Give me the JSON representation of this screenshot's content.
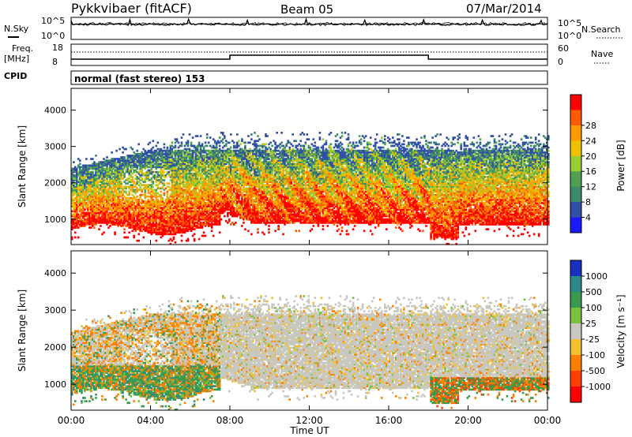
{
  "header": {
    "title": "Pykkvibaer (fitACF)",
    "beam": "Beam 05",
    "date": "07/Mar/2014"
  },
  "panels": {
    "nsky_label": "N.Sky",
    "nsky_ticks": [
      "10^5",
      "10^0"
    ],
    "nsearch_label": "N.Search",
    "nsearch_ticks": [
      "10^5",
      "10^0"
    ],
    "freq_label": "Freq.",
    "freq_unit": "[MHz]",
    "freq_ticks": [
      "18",
      "8"
    ],
    "nave_label": "Nave",
    "nave_ticks": [
      "60",
      "0"
    ],
    "cpid_label": "CPID",
    "cpid_text": "normal (fast stereo) 153"
  },
  "chart_data": [
    {
      "type": "heatmap",
      "name": "power",
      "ylabel": "Slant Range [km]",
      "yticks": [
        "1000",
        "2000",
        "3000",
        "4000"
      ],
      "ylim": [
        300,
        4600
      ],
      "xlim": [
        0,
        24
      ],
      "colorbar_label": "Power [dB]",
      "colorbar_ticks": [
        "4",
        "8",
        "12",
        "16",
        "20",
        "24",
        "28"
      ],
      "colors": [
        "#1a1aff",
        "#3050a8",
        "#3c8a6a",
        "#4fa050",
        "#9acd32",
        "#f0c000",
        "#ff9a00",
        "#ff5a00",
        "#ff0000"
      ]
    },
    {
      "type": "heatmap",
      "name": "velocity",
      "ylabel": "Slant Range [km]",
      "yticks": [
        "1000",
        "2000",
        "3000",
        "4000"
      ],
      "ylim": [
        300,
        4600
      ],
      "xlim": [
        0,
        24
      ],
      "colorbar_label": "Velocity [m s⁻¹]",
      "colorbar_ticks": [
        "1000",
        "500",
        "100",
        "25",
        "-25",
        "-100",
        "-500",
        "-1000"
      ],
      "colors": [
        "#1a30c0",
        "#2a8a8a",
        "#3a9a50",
        "#7cc040",
        "#c8c8c0",
        "#f0c030",
        "#ff8000",
        "#ff4000",
        "#ff0000"
      ]
    }
  ],
  "xaxis": {
    "label": "Time UT",
    "ticks": [
      "00:00",
      "04:00",
      "08:00",
      "12:00",
      "16:00",
      "20:00",
      "00:00"
    ]
  }
}
